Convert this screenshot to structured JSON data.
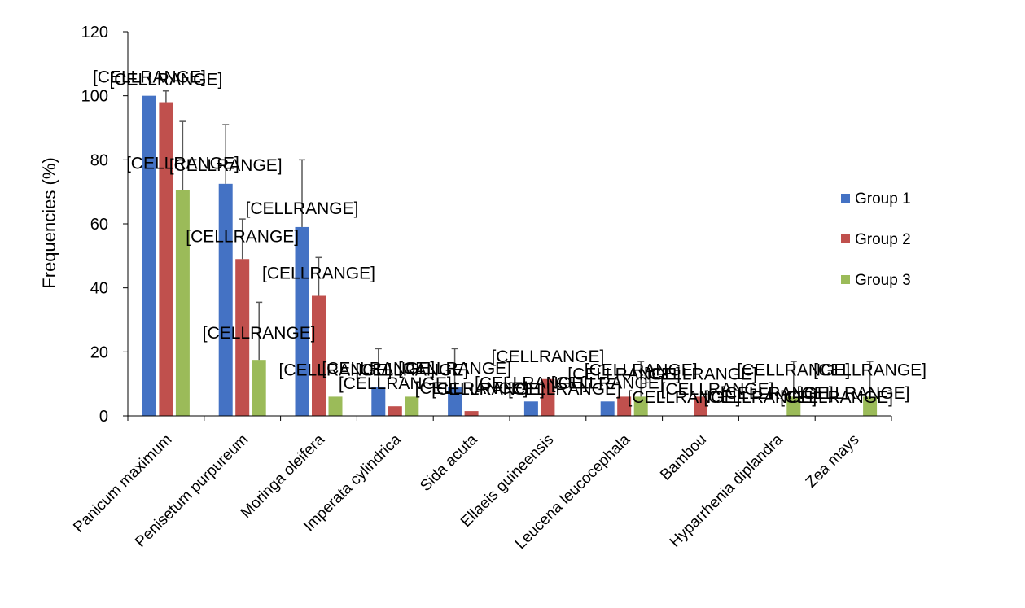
{
  "chart_data": {
    "type": "bar",
    "ylabel": "Frequencies (%)",
    "xlabel": "",
    "ylim": [
      0,
      120
    ],
    "yticks": [
      0,
      20,
      40,
      60,
      80,
      100,
      120
    ],
    "grid": false,
    "legend_position": "right",
    "categories": [
      "Panicum maximum",
      "Penisetum purpureum",
      "Moringa oleifera",
      "Imperata cylindrica",
      "Sida acuta",
      "Ellaeis guineensis",
      "Leucena leucocephala",
      "Bambou",
      "Hyparrhenia diplandra",
      "Zea mays"
    ],
    "series": [
      {
        "name": "Group 1",
        "color": "#4472c4",
        "values": [
          100,
          72.5,
          59,
          9,
          9,
          4.5,
          4.5,
          0,
          0,
          0
        ],
        "errors": [
          0,
          18.5,
          21,
          12,
          12,
          0,
          0,
          0,
          0,
          0
        ]
      },
      {
        "name": "Group 2",
        "color": "#c0504d",
        "values": [
          98,
          49,
          37.5,
          3,
          1.5,
          11.5,
          6,
          6,
          0,
          0
        ],
        "errors": [
          3.5,
          12.5,
          12,
          0,
          0,
          0,
          0,
          0,
          0,
          0
        ]
      },
      {
        "name": "Group 3",
        "color": "#9bbb59",
        "values": [
          70.5,
          17.5,
          6,
          6,
          0,
          0,
          6,
          0,
          6,
          6
        ],
        "errors": [
          21.5,
          18,
          0,
          0,
          0,
          0,
          11,
          0,
          11,
          11
        ]
      }
    ],
    "data_label_text": "[CELLRANGE]"
  }
}
